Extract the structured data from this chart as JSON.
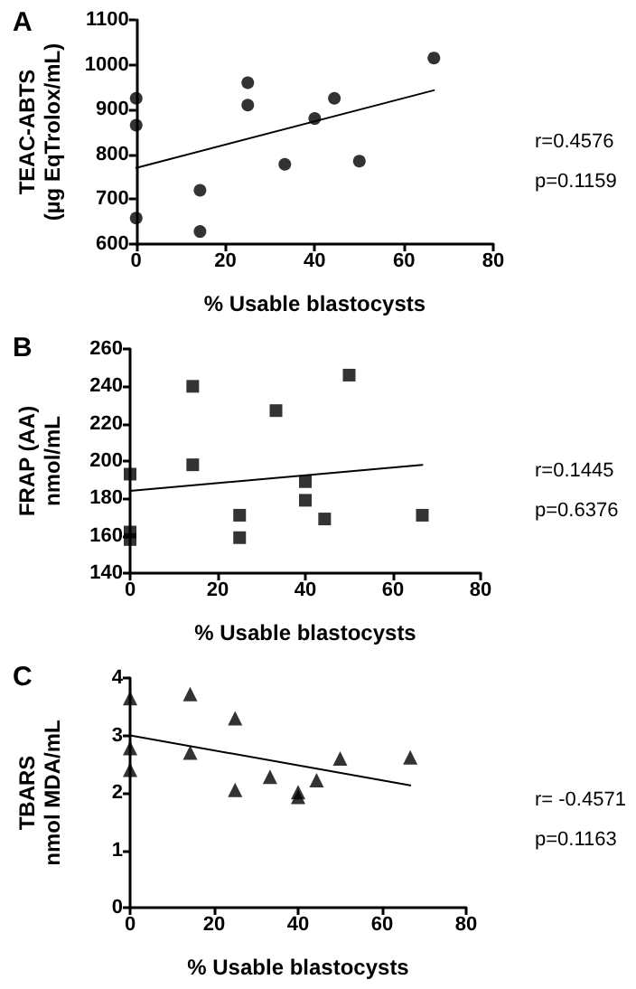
{
  "chart_data": [
    {
      "type": "scatter",
      "title": "A",
      "xlabel": "% Usable blastocysts",
      "ylabel": "TEAC-ABTS\n(µg EqTrolox/mL)",
      "xlim": [
        0,
        80
      ],
      "xticks": [
        0,
        20,
        40,
        60,
        80
      ],
      "ylim": [
        600,
        1100
      ],
      "yticks": [
        600,
        700,
        800,
        900,
        1000,
        1100
      ],
      "annotations": [
        "r=0.4576",
        "p=0.1159"
      ],
      "series": [
        {
          "type": "scatter",
          "marker": "circle",
          "color": "#000000",
          "x": [
            0,
            0,
            0,
            14.3,
            14.3,
            25,
            25,
            33.3,
            40,
            44.4,
            50,
            66.7
          ],
          "values": [
            925,
            865,
            658,
            720,
            628,
            960,
            910,
            778,
            880,
            925,
            785,
            1015
          ]
        },
        {
          "type": "line",
          "marker": "none",
          "color": "#000000",
          "x": [
            0,
            66.7
          ],
          "values": [
            770,
            943
          ]
        }
      ]
    },
    {
      "type": "scatter",
      "title": "B",
      "xlabel": "% Usable blastocysts",
      "ylabel": "FRAP (AA)\nnmol/mL",
      "xlim": [
        0,
        80
      ],
      "xticks": [
        0,
        20,
        40,
        60,
        80
      ],
      "ylim": [
        140,
        260
      ],
      "yticks": [
        140,
        160,
        180,
        200,
        220,
        240,
        260
      ],
      "annotations": [
        "r=0.1445",
        "p=0.6376"
      ],
      "series": [
        {
          "type": "scatter",
          "marker": "square",
          "color": "#000000",
          "x": [
            0,
            0,
            0,
            14.3,
            14.3,
            25,
            25,
            33.3,
            40,
            40,
            44.4,
            50,
            66.7
          ],
          "values": [
            193,
            162,
            158,
            240,
            198,
            171,
            159,
            227,
            189,
            179,
            169,
            246,
            171
          ]
        },
        {
          "type": "line",
          "marker": "none",
          "color": "#000000",
          "x": [
            0,
            66.7
          ],
          "values": [
            184,
            198
          ]
        }
      ]
    },
    {
      "type": "scatter",
      "title": "C",
      "xlabel": "% Usable blastocysts",
      "ylabel": "TBARS\nnmol MDA/mL",
      "xlim": [
        0,
        80
      ],
      "xticks": [
        0,
        20,
        40,
        60,
        80
      ],
      "ylim": [
        0,
        4
      ],
      "yticks": [
        0,
        1,
        2,
        3,
        4
      ],
      "annotations": [
        "r= -0.4571",
        "p=0.1163"
      ],
      "series": [
        {
          "type": "scatter",
          "marker": "triangle",
          "color": "#000000",
          "x": [
            0,
            0,
            0,
            14.3,
            14.3,
            25,
            25,
            33.3,
            40,
            40,
            44.4,
            50,
            66.7
          ],
          "values": [
            3.65,
            2.78,
            2.4,
            3.72,
            2.7,
            3.3,
            2.05,
            2.28,
            2.01,
            1.93,
            2.22,
            2.6,
            2.62
          ]
        },
        {
          "type": "line",
          "marker": "none",
          "color": "#000000",
          "x": [
            0,
            66.7
          ],
          "values": [
            3.0,
            2.13
          ]
        }
      ]
    }
  ]
}
